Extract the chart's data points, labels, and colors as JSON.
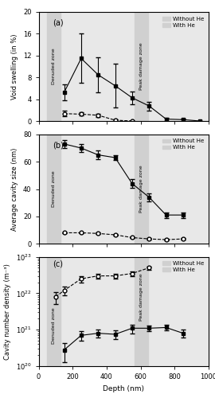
{
  "panel_a": {
    "label": "(a)",
    "ylabel": "Void swelling (in %)",
    "ylim": [
      0,
      20
    ],
    "yticks": [
      0,
      4,
      8,
      12,
      16,
      20
    ],
    "without_he": {
      "x": [
        150,
        250,
        350,
        450,
        550,
        650,
        750,
        850,
        950
      ],
      "y": [
        5.3,
        11.5,
        8.5,
        6.5,
        4.3,
        2.8,
        0.4,
        0.3,
        0.05
      ],
      "yerr": [
        1.5,
        4.5,
        3.2,
        4.0,
        1.2,
        0.8,
        0.3,
        0.2,
        0.05
      ]
    },
    "with_he": {
      "x": [
        150,
        250,
        350,
        450,
        550
      ],
      "y": [
        1.4,
        1.3,
        1.1,
        0.2,
        0.05
      ],
      "yerr": [
        0.5,
        0.3,
        0.3,
        0.1,
        0.05
      ]
    }
  },
  "panel_b": {
    "label": "(b)",
    "ylabel": "Average cavity size (nm)",
    "ylim": [
      0,
      80
    ],
    "yticks": [
      0,
      20,
      40,
      60,
      80
    ],
    "without_he": {
      "x": [
        150,
        250,
        350,
        450,
        550,
        650,
        750,
        850
      ],
      "y": [
        73,
        70,
        65,
        63,
        44,
        34,
        21,
        21
      ],
      "yerr": [
        3,
        3,
        3,
        2,
        3,
        3,
        2,
        2
      ]
    },
    "with_he": {
      "x": [
        150,
        250,
        350,
        450,
        550,
        650,
        750,
        850
      ],
      "y": [
        8,
        8,
        7.5,
        6.5,
        4.5,
        3.5,
        3.0,
        3.5
      ],
      "yerr": [
        0.5,
        0.5,
        0.5,
        0.5,
        0.5,
        0.5,
        0.5,
        0.5
      ]
    }
  },
  "panel_c": {
    "label": "(c)",
    "ylabel": "Cavity number density (m⁻³)",
    "ylim_log": [
      1e+20,
      1e+23
    ],
    "without_he": {
      "x": [
        150,
        250,
        350,
        450,
        550,
        650,
        750,
        850
      ],
      "y": [
        2.8e+20,
        7e+20,
        8e+20,
        7.5e+20,
        1.1e+21,
        1.1e+21,
        1.15e+21,
        8e+20
      ],
      "yerr_lo": [
        1.5e+20,
        2e+20,
        2e+20,
        2e+20,
        3e+20,
        2e+20,
        2e+20,
        2e+20
      ],
      "yerr_hi": [
        1.5e+20,
        2e+20,
        2e+20,
        2e+20,
        3e+20,
        2e+20,
        2e+20,
        2e+20
      ]
    },
    "with_he": {
      "x": [
        100,
        150,
        250,
        350,
        450,
        550,
        650
      ],
      "y": [
        8e+21,
        1.2e+22,
        2.5e+22,
        3e+22,
        3e+22,
        3.5e+22,
        5e+22
      ],
      "yerr_lo": [
        3e+21,
        3e+21,
        5e+21,
        5e+21,
        5e+21,
        5e+21,
        5e+21
      ],
      "yerr_hi": [
        3e+21,
        3e+21,
        5e+21,
        5e+21,
        5e+21,
        5e+21,
        5e+21
      ]
    }
  },
  "xlim": [
    0,
    1000
  ],
  "xticks": [
    0,
    200,
    400,
    600,
    800,
    1000
  ],
  "xlabel": "Depth (nm)",
  "denuded_zone": [
    50,
    130
  ],
  "peak_damage_zone": [
    565,
    645
  ],
  "bg_color": "#e8e8e8",
  "shaded_color": "#d0d0d0"
}
